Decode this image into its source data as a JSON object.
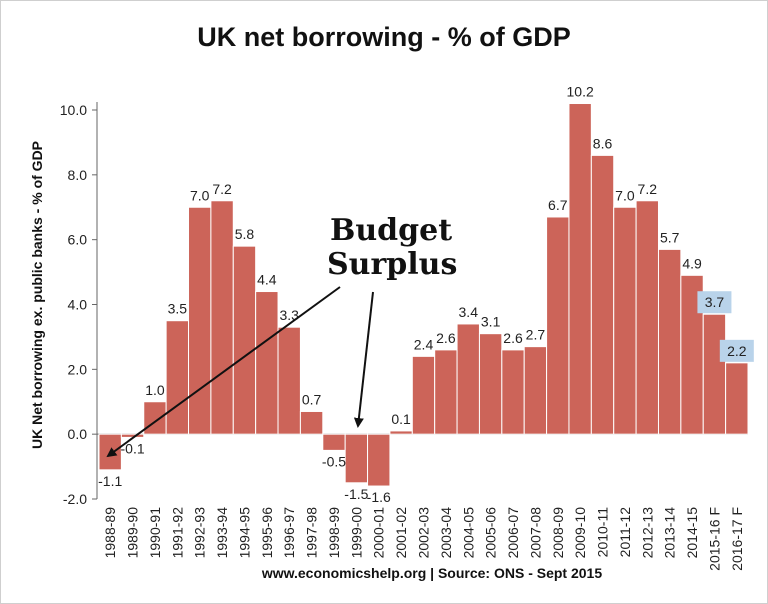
{
  "chart_data": {
    "type": "bar",
    "title": "UK net borrowing - % of GDP",
    "ylabel": "UK Net borrowing ex. public banks - % of GDP",
    "xlabel": "",
    "source": "www.economicshelp.org | Source: ONS  - Sept 2015",
    "ylim": [
      -2.0,
      10.0
    ],
    "yticks": [
      "10.0",
      "8.0",
      "6.0",
      "4.0",
      "2.0",
      "0.0",
      "-2.0"
    ],
    "grid": false,
    "categories": [
      "1988-89",
      "1989-90",
      "1990-91",
      "1991-92",
      "1992-93",
      "1993-94",
      "1994-95",
      "1995-96",
      "1996-97",
      "1997-98",
      "1998-99",
      "1999-00",
      "2000-01",
      "2001-02",
      "2002-03",
      "2003-04",
      "2004-05",
      "2005-06",
      "2006-07",
      "2007-08",
      "2008-09",
      "2009-10",
      "2010-11",
      "2011-12",
      "2012-13",
      "2013-14",
      "2014-15",
      "2015-16 F",
      "2016-17 F"
    ],
    "values": [
      -1.1,
      -0.1,
      1.0,
      3.5,
      7.0,
      7.2,
      5.8,
      4.4,
      3.3,
      0.7,
      -0.5,
      -1.5,
      -1.6,
      0.1,
      2.4,
      2.6,
      3.4,
      3.1,
      2.6,
      2.7,
      6.7,
      10.2,
      8.6,
      7.0,
      7.2,
      5.7,
      4.9,
      3.7,
      2.2
    ],
    "labels": [
      "-1.1",
      "-0.1",
      "1.0",
      "3.5",
      "7.0",
      "7.2",
      "5.8",
      "4.4",
      "3.3",
      "0.7",
      "-0.5",
      "-1.5",
      "-1.6",
      "0.1",
      "2.4",
      "2.6",
      "3.4",
      "3.1",
      "2.6",
      "2.7",
      "6.7",
      "10.2",
      "8.6",
      "7.0",
      "7.2",
      "5.7",
      "4.9",
      "3.7",
      "2.2"
    ],
    "highlighted_labels": [
      "2015-16 F",
      "2016-17 F"
    ],
    "annotation": {
      "line1": "Budget",
      "line2": "Surplus",
      "arrows_to": [
        "1988-89",
        "1999-00"
      ]
    },
    "colors": {
      "bar": "#cc6459",
      "bar_edge": "#ffffff",
      "highlight_label_bg": "#b9d3ea",
      "axis": "#666666"
    }
  }
}
